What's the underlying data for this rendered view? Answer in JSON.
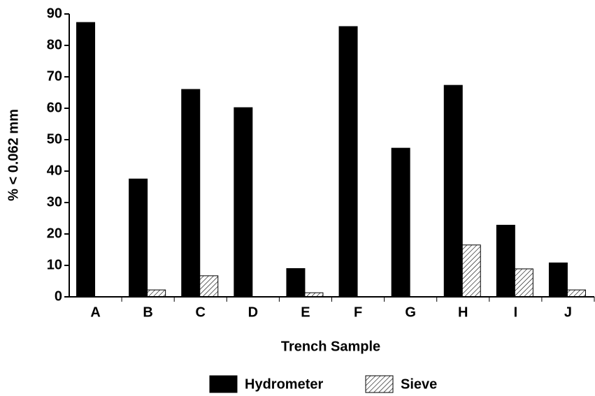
{
  "chart_data": {
    "type": "bar",
    "x_label": "Trench Sample",
    "y_label": "% < 0.062 mm",
    "categories": [
      "A",
      "B",
      "C",
      "D",
      "E",
      "F",
      "G",
      "H",
      "I",
      "J"
    ],
    "series": [
      {
        "name": "Hydrometer",
        "color": "#000000",
        "pattern": "solid",
        "values": [
          87.3,
          37.5,
          66,
          60.2,
          9,
          86,
          47.3,
          67.3,
          22.8,
          10.8
        ]
      },
      {
        "name": "Sieve",
        "color": "#000000",
        "pattern": "hatch",
        "values": [
          0,
          2.2,
          6.7,
          0,
          1.3,
          0,
          0,
          16.5,
          8.9,
          2.2
        ]
      }
    ],
    "ylim": [
      0,
      90
    ],
    "yticks": [
      0,
      10,
      20,
      30,
      40,
      50,
      60,
      70,
      80,
      90
    ],
    "grid": false,
    "legend": "bottom"
  }
}
